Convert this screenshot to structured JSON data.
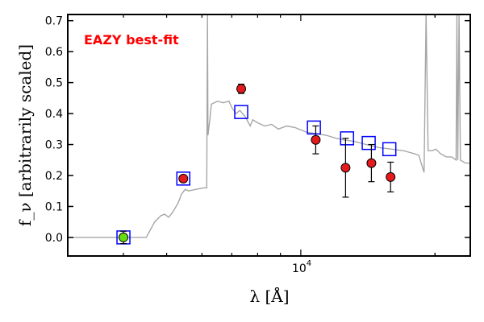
{
  "chart_data": {
    "type": "scatter",
    "title": "",
    "xlabel": "λ [Å]",
    "ylabel": "f_ν [arbitrarily scaled]",
    "x_scale": "log",
    "xlim": [
      3000,
      24000
    ],
    "ylim": [
      -0.06,
      0.72
    ],
    "yticks": [
      0.0,
      0.1,
      0.2,
      0.3,
      0.4,
      0.5,
      0.6,
      0.7
    ],
    "ytick_labels": [
      "0.0",
      "0.1",
      "0.2",
      "0.3",
      "0.4",
      "0.5",
      "0.6",
      "0.7"
    ],
    "xtick_major": {
      "value": 10000,
      "label_base": "10",
      "label_exp": "4"
    },
    "annotation": {
      "text": "EAZY best-fit",
      "color": "#ff0000",
      "position": "top-left"
    },
    "colors": {
      "template": "#a6a6a6",
      "observed": "#e41a1c",
      "upper_limit_point": "#66dd11",
      "model_boxes": "#0000ff"
    },
    "template_spectrum": [
      [
        3000,
        0.0
      ],
      [
        4500,
        0.0
      ],
      [
        4700,
        0.05
      ],
      [
        4850,
        0.07
      ],
      [
        4950,
        0.075
      ],
      [
        5050,
        0.065
      ],
      [
        5150,
        0.08
      ],
      [
        5300,
        0.11
      ],
      [
        5400,
        0.14
      ],
      [
        5500,
        0.155
      ],
      [
        5600,
        0.15
      ],
      [
        5800,
        0.155
      ],
      [
        6050,
        0.16
      ],
      [
        6150,
        0.16
      ],
      [
        6175,
        0.72
      ],
      [
        6190,
        0.33
      ],
      [
        6250,
        0.38
      ],
      [
        6300,
        0.43
      ],
      [
        6500,
        0.44
      ],
      [
        6700,
        0.435
      ],
      [
        6900,
        0.44
      ],
      [
        7000,
        0.42
      ],
      [
        7150,
        0.4
      ],
      [
        7300,
        0.41
      ],
      [
        7500,
        0.39
      ],
      [
        7700,
        0.36
      ],
      [
        7800,
        0.38
      ],
      [
        8000,
        0.37
      ],
      [
        8300,
        0.36
      ],
      [
        8600,
        0.365
      ],
      [
        8900,
        0.35
      ],
      [
        9300,
        0.36
      ],
      [
        9700,
        0.355
      ],
      [
        10300,
        0.34
      ],
      [
        10800,
        0.335
      ],
      [
        11400,
        0.33
      ],
      [
        12000,
        0.32
      ],
      [
        12500,
        0.315
      ],
      [
        13200,
        0.31
      ],
      [
        14000,
        0.3
      ],
      [
        15000,
        0.29
      ],
      [
        16000,
        0.285
      ],
      [
        17000,
        0.28
      ],
      [
        18000,
        0.27
      ],
      [
        18400,
        0.265
      ],
      [
        18900,
        0.21
      ],
      [
        19100,
        0.72
      ],
      [
        19300,
        0.28
      ],
      [
        19700,
        0.28
      ],
      [
        20100,
        0.285
      ],
      [
        20600,
        0.27
      ],
      [
        21200,
        0.26
      ],
      [
        21800,
        0.26
      ],
      [
        22300,
        0.25
      ],
      [
        22400,
        0.72
      ],
      [
        22500,
        0.25
      ],
      [
        22650,
        0.72
      ],
      [
        22800,
        0.25
      ],
      [
        23400,
        0.24
      ],
      [
        24000,
        0.24
      ]
    ],
    "series": [
      {
        "marker": "square-open",
        "points": [
          {
            "x": 4000,
            "y": 0.0
          },
          {
            "x": 5450,
            "y": 0.19
          },
          {
            "x": 7350,
            "y": 0.405
          },
          {
            "x": 10700,
            "y": 0.355
          },
          {
            "x": 12700,
            "y": 0.32
          },
          {
            "x": 14200,
            "y": 0.305
          },
          {
            "x": 15800,
            "y": 0.285
          }
        ]
      },
      {
        "marker": "circle-filled",
        "points": [
          {
            "x": 4000,
            "y": 0.0,
            "err": 0.02,
            "color_key": "upper_limit_point"
          },
          {
            "x": 5450,
            "y": 0.19,
            "err": 0.01
          },
          {
            "x": 7350,
            "y": 0.48,
            "err": 0.015
          },
          {
            "x": 10800,
            "y": 0.315,
            "err": 0.045
          },
          {
            "x": 12600,
            "y": 0.225,
            "err": 0.095
          },
          {
            "x": 14400,
            "y": 0.24,
            "err": 0.06
          },
          {
            "x": 15900,
            "y": 0.195,
            "err": 0.048
          }
        ]
      }
    ]
  }
}
